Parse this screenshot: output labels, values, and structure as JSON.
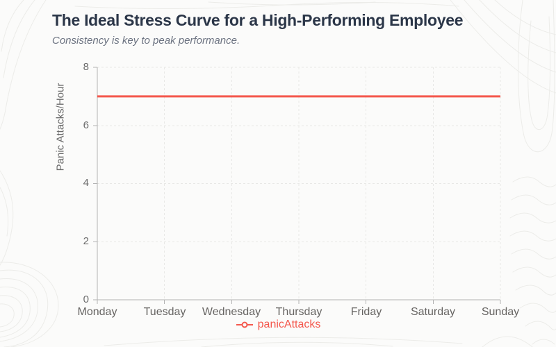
{
  "chart_data": {
    "type": "line",
    "title": "The Ideal Stress Curve for a High-Performing Employee",
    "subtitle": "Consistency is key to peak performance.",
    "categories": [
      "Monday",
      "Tuesday",
      "Wednesday",
      "Thursday",
      "Friday",
      "Saturday",
      "Sunday"
    ],
    "series": [
      {
        "name": "panicAttacks",
        "values": [
          7,
          7,
          7,
          7,
          7,
          7,
          7
        ],
        "color": "#f4584d"
      }
    ],
    "xlabel": "",
    "ylabel": "Panic Attacks/Hour",
    "ylim": [
      0,
      8
    ],
    "yticks": [
      0,
      2,
      4,
      6,
      8
    ],
    "grid": true,
    "grid_style": "dashed",
    "legend_position": "bottom"
  },
  "colors": {
    "title": "#2b3648",
    "subtitle": "#6b7280",
    "axis": "#b3b3b3",
    "gridline": "#e8e8e6",
    "tick_label": "#6b6b6b",
    "series": "#f4584d",
    "background": "#fbfbfa",
    "contour": "#ecece9"
  }
}
